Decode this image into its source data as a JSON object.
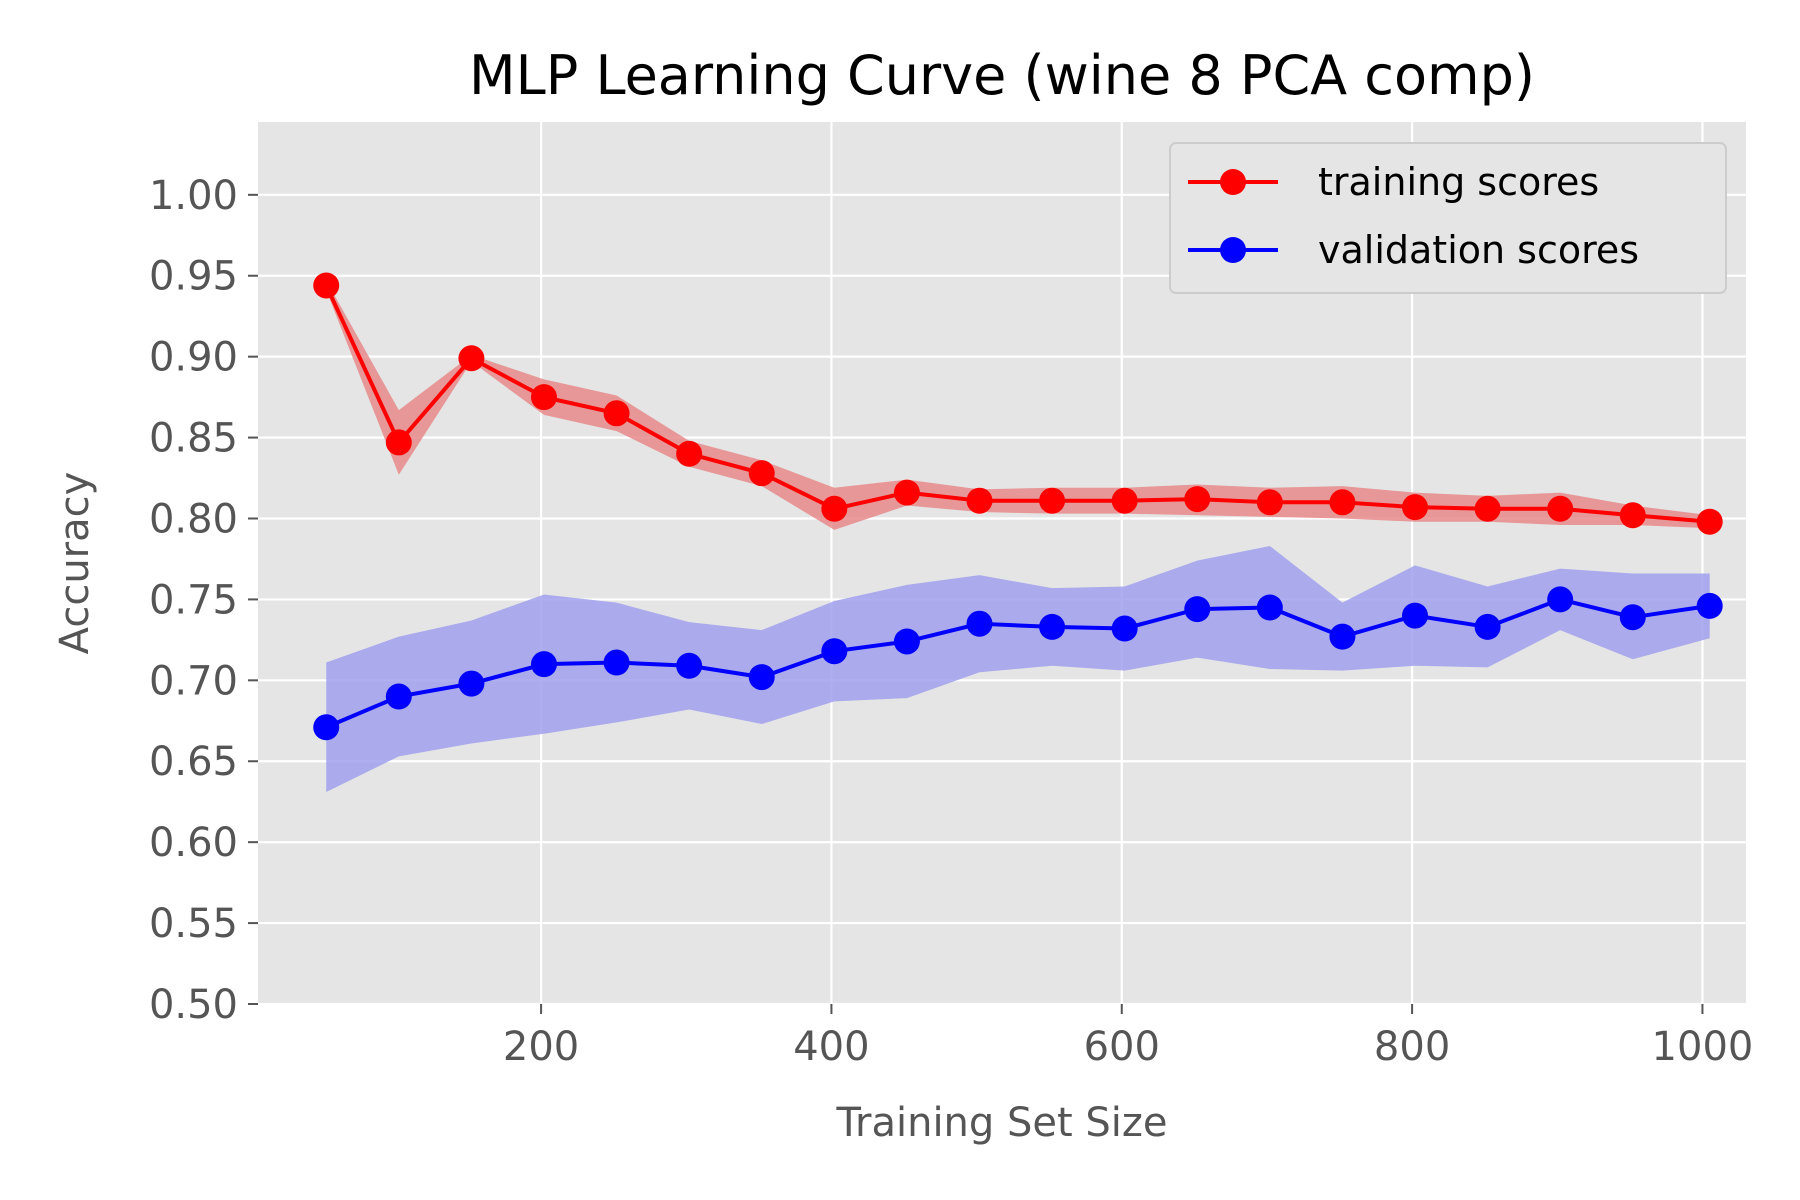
{
  "chart_data": {
    "type": "line",
    "title": "MLP Learning Curve (wine 8 PCA comp)",
    "xlabel": "Training Set Size",
    "ylabel": "Accuracy",
    "xlim": [
      5,
      1030
    ],
    "ylim": [
      0.5,
      1.045
    ],
    "xticks": [
      200,
      400,
      600,
      800,
      1000
    ],
    "xtick_labels": [
      "200",
      "400",
      "600",
      "800",
      "1000"
    ],
    "yticks": [
      0.5,
      0.55,
      0.6,
      0.65,
      0.7,
      0.75,
      0.8,
      0.85,
      0.9,
      0.95,
      1.0
    ],
    "ytick_labels": [
      "0.50",
      "0.55",
      "0.60",
      "0.65",
      "0.70",
      "0.75",
      "0.80",
      "0.85",
      "0.90",
      "0.95",
      "1.00"
    ],
    "grid": true,
    "legend_position": "top-right",
    "x": [
      52,
      102,
      152,
      202,
      252,
      302,
      352,
      402,
      452,
      502,
      552,
      602,
      652,
      702,
      752,
      802,
      852,
      902,
      952,
      1005
    ],
    "series": [
      {
        "name": "training scores",
        "color": "#ff0000",
        "band_color": "#e88a8a",
        "values": [
          0.944,
          0.847,
          0.899,
          0.875,
          0.865,
          0.84,
          0.828,
          0.806,
          0.816,
          0.811,
          0.811,
          0.811,
          0.812,
          0.81,
          0.81,
          0.807,
          0.806,
          0.806,
          0.802,
          0.798
        ],
        "lower": [
          0.941,
          0.827,
          0.897,
          0.864,
          0.854,
          0.832,
          0.82,
          0.793,
          0.808,
          0.804,
          0.803,
          0.803,
          0.802,
          0.801,
          0.8,
          0.798,
          0.798,
          0.796,
          0.796,
          0.794
        ],
        "upper": [
          0.947,
          0.867,
          0.901,
          0.886,
          0.876,
          0.848,
          0.836,
          0.819,
          0.824,
          0.818,
          0.819,
          0.819,
          0.821,
          0.819,
          0.82,
          0.816,
          0.814,
          0.816,
          0.808,
          0.802
        ]
      },
      {
        "name": "validation scores",
        "color": "#0000ff",
        "band_color": "#a0a0ee",
        "values": [
          0.671,
          0.69,
          0.698,
          0.71,
          0.711,
          0.709,
          0.702,
          0.718,
          0.724,
          0.735,
          0.733,
          0.732,
          0.744,
          0.745,
          0.727,
          0.74,
          0.733,
          0.75,
          0.739,
          0.746
        ],
        "lower": [
          0.631,
          0.653,
          0.661,
          0.667,
          0.674,
          0.682,
          0.673,
          0.687,
          0.689,
          0.705,
          0.709,
          0.706,
          0.714,
          0.707,
          0.706,
          0.709,
          0.708,
          0.731,
          0.713,
          0.726
        ],
        "upper": [
          0.711,
          0.727,
          0.737,
          0.753,
          0.748,
          0.736,
          0.731,
          0.749,
          0.759,
          0.765,
          0.757,
          0.758,
          0.774,
          0.783,
          0.748,
          0.771,
          0.758,
          0.769,
          0.766,
          0.766
        ]
      }
    ]
  }
}
